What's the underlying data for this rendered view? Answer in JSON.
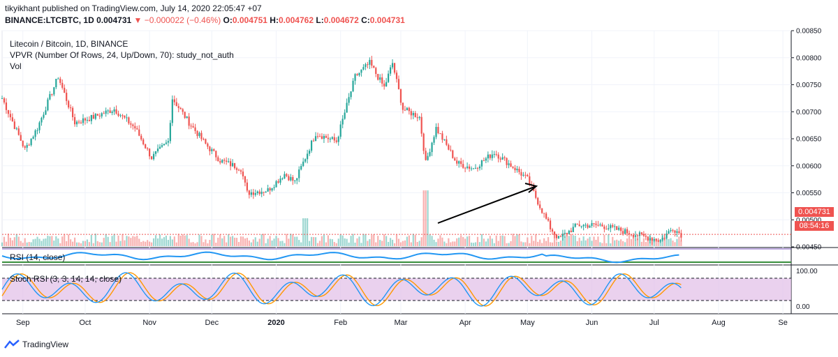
{
  "header": {
    "publisher_line": "tikyikhant published on TradingView.com, July 14, 2020 22:05:47 +07",
    "symbol": "BINANCE:LTCBTC, 1D",
    "last": "0.004731",
    "change_arrow": "▼",
    "change": "−0.000022 (−0.46%)",
    "o_label": "O:",
    "o_value": "0.004751",
    "h_label": "H:",
    "h_value": "0.004762",
    "l_label": "L:",
    "l_value": "0.004672",
    "c_label": "C:",
    "c_value": "0.004731"
  },
  "legend": {
    "pair": "Litecoin / Bitcoin, 1D, BINANCE",
    "vpvr": "VPVR (Number Of Rows, 24, Up/Down, 70): study_not_auth",
    "vol": "Vol",
    "rsi": "RSI (14, close)",
    "stoch": "Stoch RSI (3, 3, 14, 14, close)"
  },
  "price_tag": {
    "value": "0.004731",
    "color": "#ef5350"
  },
  "countdown_tag": {
    "value": "08:54:16",
    "color": "#ef5350"
  },
  "stoch_axis": [
    "100.00",
    "0.00"
  ],
  "branding": "TradingView",
  "colors": {
    "up": "#26a69a",
    "down": "#ef5350",
    "rsi": "#2196f3",
    "stoch_k": "#2196f3",
    "stoch_d": "#ff9800",
    "stoch_band": "#e1bee7"
  },
  "chart_data": {
    "type": "candlestick",
    "title": "Litecoin / Bitcoin, 1D, BINANCE",
    "x_tick_labels": [
      "Sep",
      "Oct",
      "Nov",
      "Dec",
      "2020",
      "Feb",
      "Mar",
      "Apr",
      "May",
      "Jun",
      "Jul",
      "Aug",
      "Se"
    ],
    "y_tick_labels": [
      "0.00850",
      "0.00800",
      "0.00750",
      "0.00700",
      "0.00650",
      "0.00600",
      "0.00550",
      "0.00500",
      "0.00450"
    ],
    "ylim": [
      0.0045,
      0.0085
    ],
    "current_price": 0.004731,
    "price_key_points": [
      {
        "date": "2019-08-22",
        "close": 0.00725
      },
      {
        "date": "2019-09-02",
        "close": 0.0063
      },
      {
        "date": "2019-09-08",
        "close": 0.0067
      },
      {
        "date": "2019-09-18",
        "close": 0.00765
      },
      {
        "date": "2019-09-26",
        "close": 0.0068
      },
      {
        "date": "2019-10-05",
        "close": 0.0069
      },
      {
        "date": "2019-10-15",
        "close": 0.00705
      },
      {
        "date": "2019-10-25",
        "close": 0.0067
      },
      {
        "date": "2019-11-02",
        "close": 0.00615
      },
      {
        "date": "2019-11-10",
        "close": 0.00645
      },
      {
        "date": "2019-11-12",
        "close": 0.00725
      },
      {
        "date": "2019-11-20",
        "close": 0.0068
      },
      {
        "date": "2019-11-28",
        "close": 0.0064
      },
      {
        "date": "2019-12-05",
        "close": 0.0061
      },
      {
        "date": "2019-12-15",
        "close": 0.00595
      },
      {
        "date": "2019-12-18",
        "close": 0.0055
      },
      {
        "date": "2019-12-28",
        "close": 0.00555
      },
      {
        "date": "2020-01-05",
        "close": 0.00585
      },
      {
        "date": "2020-01-10",
        "close": 0.0057
      },
      {
        "date": "2020-01-20",
        "close": 0.0066
      },
      {
        "date": "2020-01-30",
        "close": 0.00645
      },
      {
        "date": "2020-02-08",
        "close": 0.00765
      },
      {
        "date": "2020-02-15",
        "close": 0.0079
      },
      {
        "date": "2020-02-22",
        "close": 0.00745
      },
      {
        "date": "2020-02-26",
        "close": 0.0079
      },
      {
        "date": "2020-03-02",
        "close": 0.00705
      },
      {
        "date": "2020-03-10",
        "close": 0.0069
      },
      {
        "date": "2020-03-13",
        "close": 0.00605
      },
      {
        "date": "2020-03-18",
        "close": 0.0067
      },
      {
        "date": "2020-03-28",
        "close": 0.00605
      },
      {
        "date": "2020-04-05",
        "close": 0.00595
      },
      {
        "date": "2020-04-15",
        "close": 0.00625
      },
      {
        "date": "2020-04-25",
        "close": 0.00595
      },
      {
        "date": "2020-05-01",
        "close": 0.00575
      },
      {
        "date": "2020-05-07",
        "close": 0.00525
      },
      {
        "date": "2020-05-12",
        "close": 0.00485
      },
      {
        "date": "2020-05-16",
        "close": 0.00465
      },
      {
        "date": "2020-05-25",
        "close": 0.0049
      },
      {
        "date": "2020-06-05",
        "close": 0.0049
      },
      {
        "date": "2020-06-15",
        "close": 0.0048
      },
      {
        "date": "2020-06-25",
        "close": 0.0047
      },
      {
        "date": "2020-07-04",
        "close": 0.00462
      },
      {
        "date": "2020-07-10",
        "close": 0.00485
      },
      {
        "date": "2020-07-14",
        "close": 0.00473
      }
    ],
    "rsi_level_lines": [
      70,
      30
    ],
    "stoch_level_lines": [
      80,
      20
    ],
    "annotation": "arrow drawn from mid-March toward early-May price"
  }
}
